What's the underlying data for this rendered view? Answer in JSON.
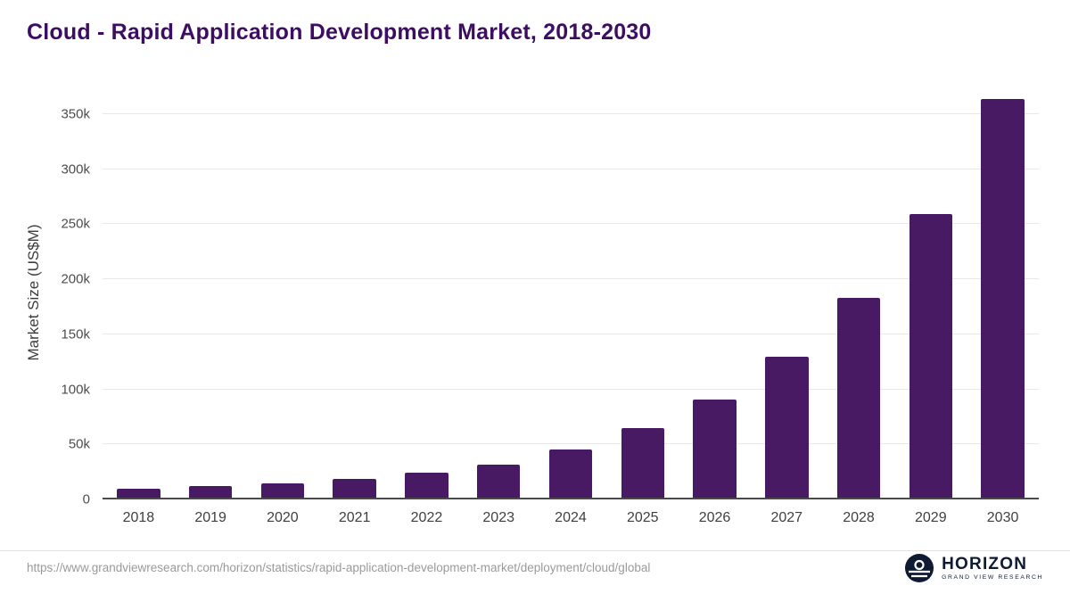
{
  "title": "Cloud - Rapid Application Development Market, 2018-2030",
  "source_url": "https://www.grandviewresearch.com/horizon/statistics/rapid-application-development-market/deployment/cloud/global",
  "brand": {
    "name": "HORIZON",
    "subtitle": "GRAND VIEW RESEARCH",
    "icon": "horizon-globe-icon",
    "color": "#0f1b33"
  },
  "colors": {
    "bar": "#481a63",
    "title": "#3d0c63",
    "gridline": "#e8e8e8",
    "axis": "#4a4a4a"
  },
  "chart_data": {
    "type": "bar",
    "title": "Cloud - Rapid Application Development Market, 2018-2030",
    "xlabel": "",
    "ylabel": "Market Size (US$M)",
    "categories": [
      "2018",
      "2019",
      "2020",
      "2021",
      "2022",
      "2023",
      "2024",
      "2025",
      "2026",
      "2027",
      "2028",
      "2029",
      "2030"
    ],
    "values": [
      9800,
      12100,
      14800,
      18600,
      24100,
      32000,
      45500,
      64500,
      91000,
      129500,
      183000,
      259000,
      363500
    ],
    "ylim": [
      0,
      375000
    ],
    "ytick_values": [
      0,
      50000,
      100000,
      150000,
      200000,
      250000,
      300000,
      350000
    ],
    "ytick_labels": [
      "0",
      "50k",
      "100k",
      "150k",
      "200k",
      "250k",
      "300k",
      "350k"
    ],
    "grid": "horizontal",
    "legend": "none",
    "bar_color": "#481a63"
  }
}
